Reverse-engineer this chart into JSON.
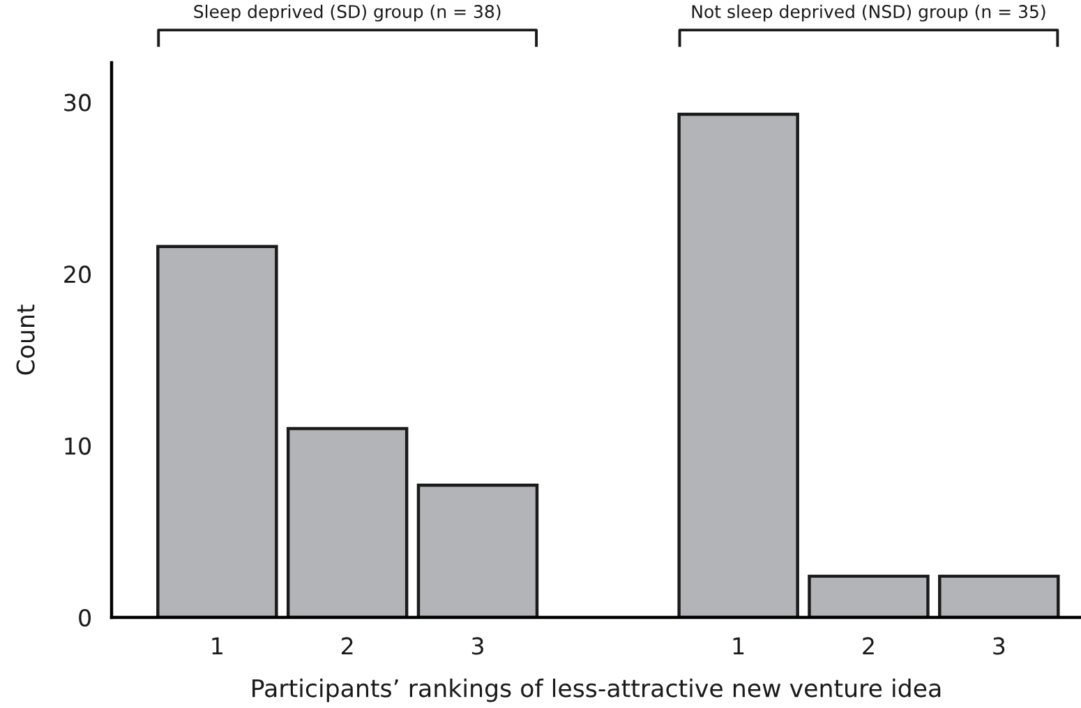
{
  "chart_data": {
    "type": "bar",
    "categories": [
      "1",
      "2",
      "3",
      null,
      "1",
      "2",
      "3"
    ],
    "values": [
      21.6,
      11,
      7.7,
      null,
      29.3,
      2.4,
      2.4
    ],
    "color": "#b3b4b8",
    "xlabel": "Participants’ rankings of less-attractive new venture idea",
    "ylabel": "Count",
    "ylim": [
      0,
      32.3
    ],
    "yticks": [
      0,
      10,
      20,
      30
    ],
    "grid": false,
    "legend": false,
    "annotations": [
      "Sleep deprived (SD) group (n = 38)",
      "Not sleep deprived (NSD) group (n = 35)"
    ]
  }
}
